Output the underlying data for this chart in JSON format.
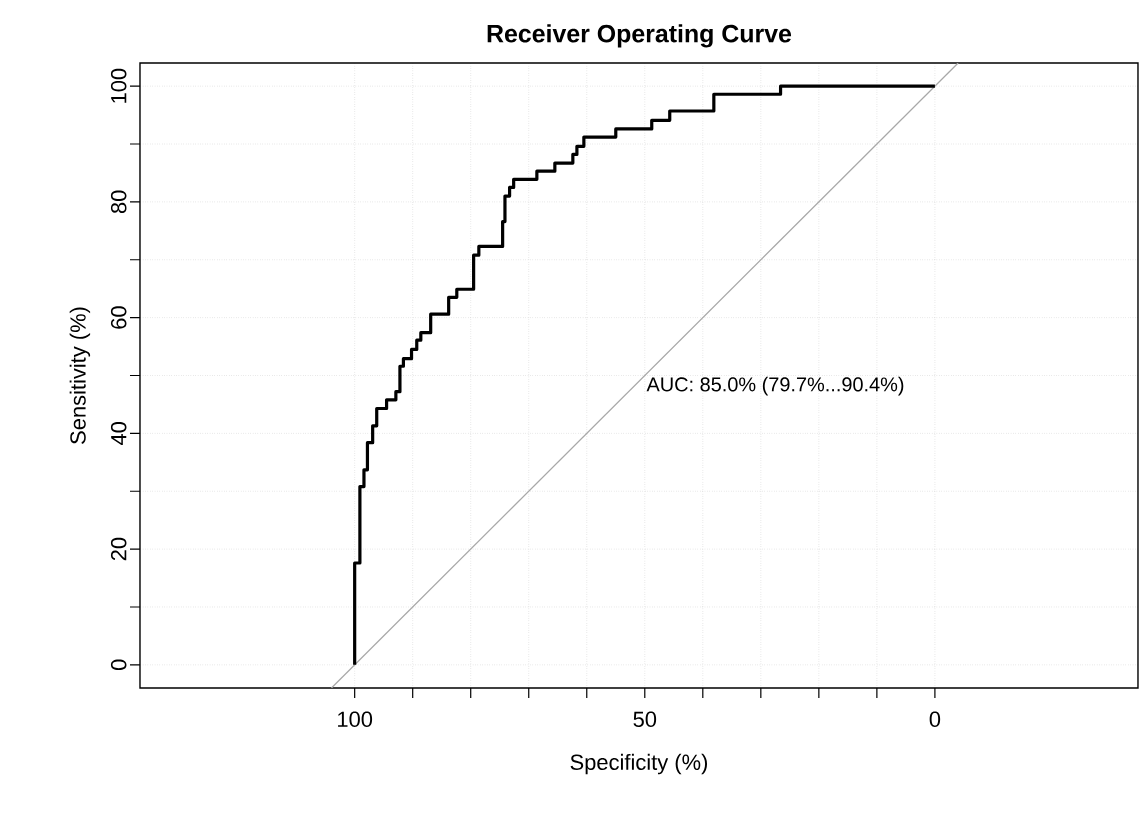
{
  "chart_data": {
    "type": "step",
    "title": "Receiver Operating Curve",
    "xlabel": "Specificity (%)",
    "ylabel": "Sensitivity (%)",
    "xlim": [
      137,
      -35
    ],
    "ylim": [
      -4,
      104
    ],
    "xticks": [
      100,
      {
        "value": 90,
        "label": null
      },
      {
        "value": 80,
        "label": null
      },
      {
        "value": 70,
        "label": null
      },
      {
        "value": 60,
        "label": null
      },
      50,
      {
        "value": 40,
        "label": null
      },
      {
        "value": 30,
        "label": null
      },
      {
        "value": 20,
        "label": null
      },
      {
        "value": 10,
        "label": null
      },
      0
    ],
    "yticks": [
      0,
      {
        "value": 10,
        "label": null
      },
      20,
      {
        "value": 30,
        "label": null
      },
      40,
      {
        "value": 50,
        "label": null
      },
      60,
      {
        "value": 70,
        "label": null
      },
      80,
      {
        "value": 90,
        "label": null
      },
      100
    ],
    "grid": true,
    "annotations": [
      "AUC: 85.0% (79.7%...90.4%)"
    ],
    "series": [
      {
        "type": "line",
        "color": "#a8a8a8",
        "x": [
          104,
          -4
        ],
        "values": [
          -4,
          104
        ]
      },
      {
        "color": "#000000",
        "x": [
          100,
          100,
          99.1,
          98.4,
          97.8,
          96.9,
          96.2,
          94.5,
          92.9,
          92.2,
          91.6,
          90.2,
          89.3,
          88.6,
          86.9,
          83.8,
          82.4,
          79.5,
          78.6,
          74.5,
          74.1,
          73.3,
          72.6,
          68.6,
          65.5,
          62.4,
          61.7,
          60.5,
          55.0,
          48.8,
          45.7,
          38.1,
          26.6,
          0
        ],
        "values": [
          0,
          17.6,
          30.8,
          33.7,
          38.4,
          41.3,
          44.3,
          45.8,
          47.2,
          51.6,
          52.9,
          54.5,
          56.1,
          57.4,
          60.6,
          63.5,
          64.9,
          70.8,
          72.3,
          76.6,
          81.0,
          82.5,
          83.9,
          85.3,
          86.7,
          88.2,
          89.6,
          91.2,
          92.6,
          94.1,
          95.7,
          98.6,
          100,
          100
        ]
      }
    ]
  }
}
